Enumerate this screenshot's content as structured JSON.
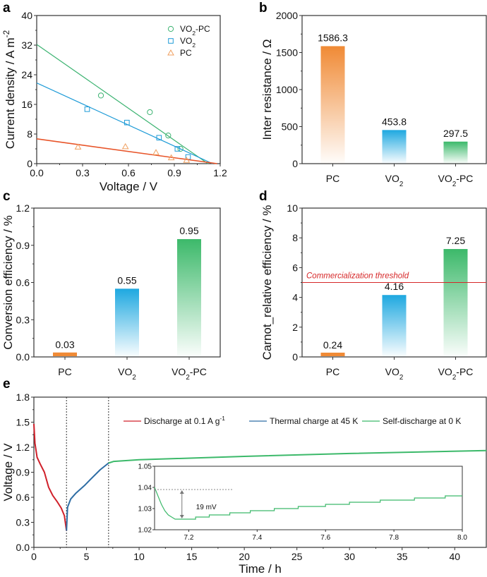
{
  "chart_data": [
    {
      "panel": "a",
      "type": "scatter",
      "xlabel": "Voltage / V",
      "ylabel": "Current density / A m⁻²",
      "xlim": [
        0,
        1.2
      ],
      "ylim": [
        0,
        40
      ],
      "xticks": [
        "0.0",
        "0.3",
        "0.6",
        "0.9",
        "1.2"
      ],
      "yticks": [
        "0",
        "8",
        "16",
        "24",
        "32",
        "40"
      ],
      "legend_position": "top-right",
      "series": [
        {
          "name": "VO₂-PC",
          "marker": "circle",
          "color": "#3cb371",
          "points": [
            [
              0.42,
              18.4
            ],
            [
              0.74,
              13.9
            ],
            [
              0.86,
              7.6
            ],
            [
              0.94,
              4.0
            ]
          ],
          "fit": [
            [
              0.0,
              32.2
            ],
            [
              1.12,
              0.0
            ]
          ]
        },
        {
          "name": "VO₂",
          "marker": "square",
          "color": "#1e9bd7",
          "points": [
            [
              0.33,
              14.7
            ],
            [
              0.59,
              11.1
            ],
            [
              0.8,
              7.0
            ],
            [
              0.92,
              4.0
            ],
            [
              0.99,
              1.8
            ]
          ],
          "fit": [
            [
              0.0,
              21.8
            ],
            [
              1.15,
              0.0
            ]
          ]
        },
        {
          "name": "PC",
          "marker": "triangle",
          "color": "#f0a060",
          "points": [
            [
              0.27,
              4.5
            ],
            [
              0.58,
              4.6
            ],
            [
              0.78,
              3.0
            ],
            [
              0.88,
              1.6
            ],
            [
              0.98,
              0.9
            ]
          ],
          "fit": [
            [
              0.0,
              6.7
            ],
            [
              1.18,
              0.0
            ]
          ]
        }
      ]
    },
    {
      "panel": "b",
      "type": "bar",
      "categories": [
        "PC",
        "VO₂",
        "VO₂-PC"
      ],
      "values": [
        1586.3,
        453.8,
        297.5
      ],
      "data_labels": [
        "1586.3",
        "453.8",
        "297.5"
      ],
      "colors": [
        "#f08a35",
        "#1ea8e0",
        "#3cb96a"
      ],
      "ylabel": "Inter resistance / Ω",
      "ylim": [
        0,
        2000
      ],
      "yticks": [
        "0",
        "500",
        "1000",
        "1500",
        "2000"
      ]
    },
    {
      "panel": "c",
      "type": "bar",
      "categories": [
        "PC",
        "VO₂",
        "VO₂-PC"
      ],
      "values": [
        0.03,
        0.55,
        0.95
      ],
      "data_labels": [
        "0.03",
        "0.55",
        "0.95"
      ],
      "colors": [
        "#f08a35",
        "#1ea8e0",
        "#3cb96a"
      ],
      "ylabel": "Conversion efficiency / %",
      "ylim": [
        0,
        1.2
      ],
      "yticks": [
        "0.0",
        "0.3",
        "0.6",
        "0.9",
        "1.2"
      ]
    },
    {
      "panel": "d",
      "type": "bar",
      "categories": [
        "PC",
        "VO₂",
        "VO₂-PC"
      ],
      "values": [
        0.24,
        4.16,
        7.25
      ],
      "data_labels": [
        "0.24",
        "4.16",
        "7.25"
      ],
      "colors": [
        "#f08a35",
        "#1ea8e0",
        "#3cb96a"
      ],
      "ylabel": "Carnot_relative efficiency / %",
      "ylim": [
        0,
        10
      ],
      "yticks": [
        "0",
        "2",
        "4",
        "6",
        "8",
        "10"
      ],
      "threshold": {
        "value": 5,
        "label": "Commercialization threshold",
        "color": "#d62728"
      }
    },
    {
      "panel": "e",
      "type": "line",
      "xlabel": "Time / h",
      "ylabel": "Voltage / V",
      "xlim": [
        0,
        43
      ],
      "ylim": [
        0,
        1.8
      ],
      "xticks": [
        "0",
        "5",
        "10",
        "15",
        "20",
        "25",
        "30",
        "35",
        "40"
      ],
      "yticks": [
        "0.0",
        "0.3",
        "0.6",
        "0.9",
        "1.2",
        "1.5",
        "1.8"
      ],
      "vlines": [
        3.1,
        7.1
      ],
      "legend_position": "top",
      "series": [
        {
          "name": "Discharge at 0.1 A g⁻¹",
          "color": "#d0202a",
          "points": [
            [
              0,
              1.48
            ],
            [
              0.1,
              1.25
            ],
            [
              0.3,
              1.08
            ],
            [
              0.6,
              1.0
            ],
            [
              1.0,
              0.9
            ],
            [
              1.4,
              0.72
            ],
            [
              1.8,
              0.62
            ],
            [
              2.2,
              0.55
            ],
            [
              2.6,
              0.47
            ],
            [
              2.9,
              0.38
            ],
            [
              3.1,
              0.2
            ]
          ]
        },
        {
          "name": "Thermal charge at 45 K",
          "color": "#2e6da4",
          "points": [
            [
              3.1,
              0.2
            ],
            [
              3.2,
              0.48
            ],
            [
              3.5,
              0.58
            ],
            [
              4.0,
              0.65
            ],
            [
              4.8,
              0.74
            ],
            [
              5.5,
              0.83
            ],
            [
              6.3,
              0.93
            ],
            [
              7.1,
              1.01
            ]
          ]
        },
        {
          "name": "Self-discharge at 0 K",
          "color": "#3cb96a",
          "points": [
            [
              7.1,
              1.01
            ],
            [
              7.6,
              1.03
            ],
            [
              10,
              1.05
            ],
            [
              20,
              1.09
            ],
            [
              30,
              1.125
            ],
            [
              43,
              1.16
            ]
          ]
        }
      ],
      "inset": {
        "xlim": [
          7.1,
          8.0
        ],
        "ylim": [
          1.02,
          1.05
        ],
        "xticks": [
          "7.2",
          "7.4",
          "7.6",
          "7.8",
          "8.0"
        ],
        "yticks": [
          "1.02",
          "1.03",
          "1.04",
          "1.05"
        ],
        "annotation": "19 mV",
        "reference_level": 1.039,
        "color": "#3cb96a",
        "points": [
          [
            7.1,
            1.04
          ],
          [
            7.11,
            1.036
          ],
          [
            7.12,
            1.032
          ],
          [
            7.13,
            1.029
          ],
          [
            7.14,
            1.027
          ],
          [
            7.15,
            1.026
          ],
          [
            7.16,
            1.025
          ],
          [
            7.22,
            1.025
          ],
          [
            7.22,
            1.026
          ],
          [
            7.26,
            1.026
          ],
          [
            7.26,
            1.027
          ],
          [
            7.32,
            1.027
          ],
          [
            7.32,
            1.028
          ],
          [
            7.38,
            1.028
          ],
          [
            7.38,
            1.029
          ],
          [
            7.45,
            1.029
          ],
          [
            7.45,
            1.03
          ],
          [
            7.52,
            1.03
          ],
          [
            7.52,
            1.031
          ],
          [
            7.6,
            1.031
          ],
          [
            7.6,
            1.032
          ],
          [
            7.67,
            1.032
          ],
          [
            7.67,
            1.033
          ],
          [
            7.76,
            1.033
          ],
          [
            7.76,
            1.034
          ],
          [
            7.86,
            1.034
          ],
          [
            7.86,
            1.035
          ],
          [
            7.95,
            1.035
          ],
          [
            7.95,
            1.036
          ],
          [
            8.0,
            1.036
          ]
        ]
      }
    }
  ],
  "panel_labels": [
    "a",
    "b",
    "c",
    "d",
    "e"
  ]
}
